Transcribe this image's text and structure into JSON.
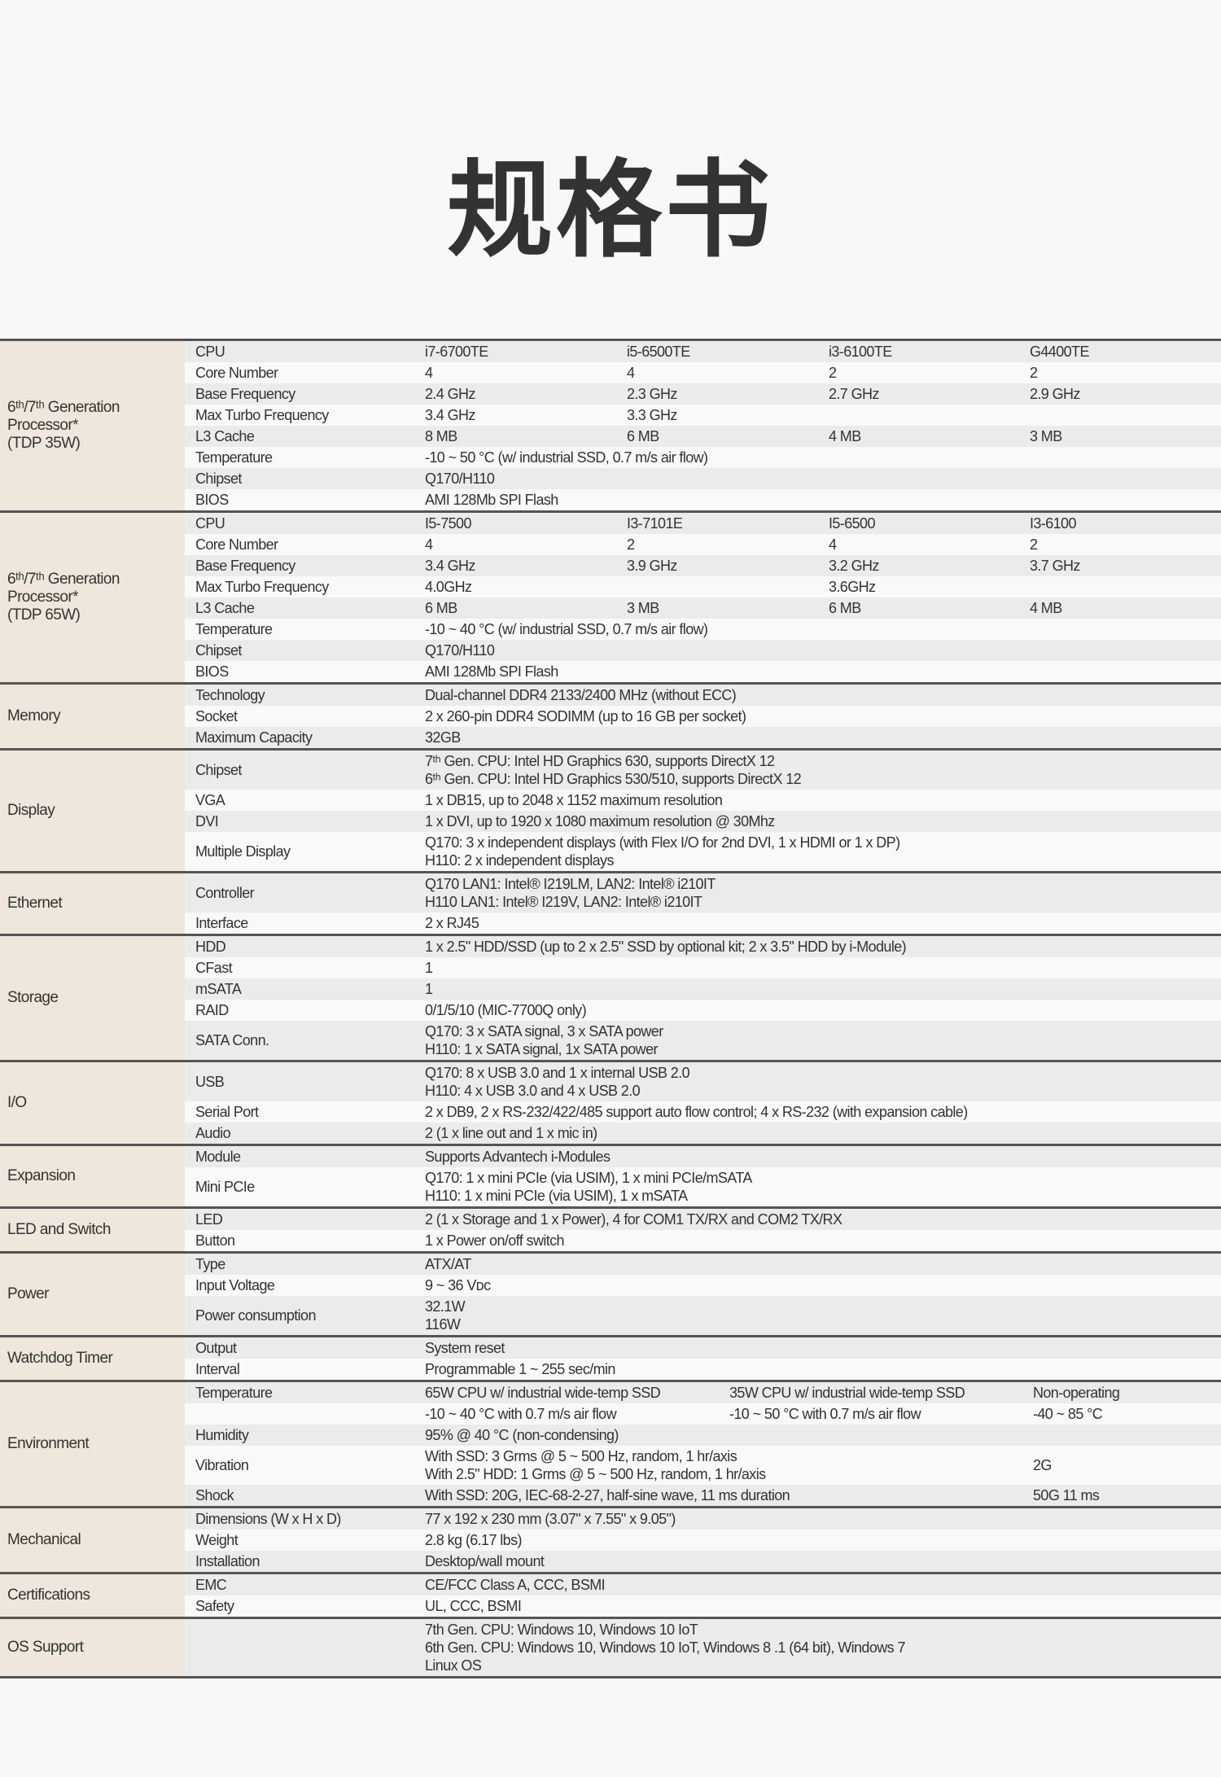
{
  "title": "规格书",
  "colors": {
    "label_bg": "#efe6dc",
    "row_shade": "#ebebeb",
    "divider": "#555555"
  },
  "groups": [
    {
      "label": "6ᵗʰ/7ᵗʰ Generation\nProcessor*\n(TDP 35W)",
      "rows": [
        {
          "param": "CPU",
          "values": [
            "i7-6700TE",
            "i5-6500TE",
            "i3-6100TE",
            "G4400TE"
          ]
        },
        {
          "param": "Core Number",
          "values": [
            "4",
            "4",
            "2",
            "2"
          ]
        },
        {
          "param": "Base Frequency",
          "values": [
            "2.4 GHz",
            "2.3 GHz",
            "2.7 GHz",
            "2.9 GHz"
          ]
        },
        {
          "param": "Max Turbo Frequency",
          "values": [
            "3.4 GHz",
            "3.3 GHz",
            "",
            ""
          ]
        },
        {
          "param": "L3 Cache",
          "values": [
            "8 MB",
            "6 MB",
            "4 MB",
            "3 MB"
          ]
        },
        {
          "param": "Temperature",
          "values": [
            "-10 ~ 50 °C (w/ industrial SSD, 0.7 m/s air flow)"
          ]
        },
        {
          "param": "Chipset",
          "values": [
            "Q170/H110"
          ]
        },
        {
          "param": "BIOS",
          "values": [
            "AMI 128Mb SPI Flash"
          ]
        }
      ]
    },
    {
      "label": "6ᵗʰ/7ᵗʰ Generation\nProcessor*\n(TDP 65W)",
      "rows": [
        {
          "param": "CPU",
          "values": [
            "I5-7500",
            "I3-7101E",
            "I5-6500",
            "I3-6100"
          ]
        },
        {
          "param": "Core Number",
          "values": [
            "4",
            "2",
            "4",
            "2"
          ]
        },
        {
          "param": "Base Frequency",
          "values": [
            "3.4 GHz",
            "3.9 GHz",
            "3.2 GHz",
            "3.7 GHz"
          ]
        },
        {
          "param": "Max Turbo Frequency",
          "values": [
            "4.0GHz",
            "",
            "3.6GHz",
            ""
          ]
        },
        {
          "param": "L3 Cache",
          "values": [
            "6 MB",
            "3 MB",
            "6 MB",
            "4 MB"
          ]
        },
        {
          "param": "Temperature",
          "values": [
            "-10 ~ 40 °C (w/ industrial SSD, 0.7 m/s air flow)"
          ]
        },
        {
          "param": "Chipset",
          "values": [
            "Q170/H110"
          ]
        },
        {
          "param": "BIOS",
          "values": [
            "AMI 128Mb SPI Flash"
          ]
        }
      ]
    },
    {
      "label": "Memory",
      "rows": [
        {
          "param": "Technology",
          "values": [
            "Dual-channel DDR4 2133/2400 MHz (without ECC)"
          ]
        },
        {
          "param": "Socket",
          "values": [
            "2 x 260-pin DDR4 SODIMM (up to 16 GB per socket)"
          ]
        },
        {
          "param": "Maximum Capacity",
          "values": [
            "32GB"
          ]
        }
      ]
    },
    {
      "label": "Display",
      "rows": [
        {
          "param": "Chipset",
          "values": [
            "7ᵗʰ Gen. CPU: Intel HD Graphics 630, supports DirectX 12\n6ᵗʰ Gen. CPU: Intel HD Graphics 530/510, supports DirectX 12"
          ]
        },
        {
          "param": "VGA",
          "values": [
            "1 x DB15, up to 2048 x 1152 maximum resolution"
          ]
        },
        {
          "param": "DVI",
          "values": [
            "1 x DVI, up to 1920 x 1080 maximum resolution @ 30Mhz"
          ]
        },
        {
          "param": "Multiple Display",
          "values": [
            "Q170: 3 x independent displays (with Flex I/O for 2nd DVI, 1 x HDMI or 1 x DP)\nH110: 2 x independent displays"
          ]
        }
      ]
    },
    {
      "label": "Ethernet",
      "rows": [
        {
          "param": "Controller",
          "values": [
            "Q170 LAN1: Intel® I219LM, LAN2: Intel® i210IT\nH110 LAN1: Intel® I219V, LAN2: Intel® i210IT"
          ]
        },
        {
          "param": "Interface",
          "values": [
            "2 x RJ45"
          ]
        }
      ]
    },
    {
      "label": "Storage",
      "rows": [
        {
          "param": "HDD",
          "values": [
            "1 x 2.5\" HDD/SSD (up to 2 x 2.5\" SSD by optional kit; 2 x 3.5\" HDD by i-Module)"
          ]
        },
        {
          "param": "CFast",
          "values": [
            "1"
          ]
        },
        {
          "param": "mSATA",
          "values": [
            "1"
          ]
        },
        {
          "param": "RAID",
          "values": [
            "0/1/5/10 (MIC-7700Q only)"
          ]
        },
        {
          "param": "SATA Conn.",
          "values": [
            "Q170: 3 x SATA signal, 3 x SATA power\nH110: 1 x SATA signal, 1x SATA power"
          ]
        }
      ]
    },
    {
      "label": "I/O",
      "rows": [
        {
          "param": "USB",
          "values": [
            "Q170: 8 x USB 3.0 and 1 x internal USB 2.0\nH110: 4 x USB 3.0 and 4 x USB 2.0"
          ]
        },
        {
          "param": "Serial Port",
          "values": [
            "2 x DB9, 2 x RS-232/422/485 support auto flow control; 4 x RS-232 (with expansion cable)"
          ]
        },
        {
          "param": "Audio",
          "values": [
            "2 (1 x line out and 1 x mic in)"
          ]
        }
      ]
    },
    {
      "label": "Expansion",
      "rows": [
        {
          "param": "Module",
          "values": [
            "Supports Advantech i-Modules"
          ]
        },
        {
          "param": "Mini PCIe",
          "values": [
            "Q170: 1 x mini PCIe (via USIM), 1 x mini PCIe/mSATA\nH110: 1 x mini PCIe (via USIM), 1 x mSATA"
          ]
        }
      ]
    },
    {
      "label": "LED and Switch",
      "rows": [
        {
          "param": "LED",
          "values": [
            "2 (1 x Storage and 1 x Power), 4 for COM1 TX/RX and COM2 TX/RX"
          ]
        },
        {
          "param": "Button",
          "values": [
            "1 x Power on/off switch"
          ]
        }
      ]
    },
    {
      "label": "Power",
      "rows": [
        {
          "param": "Type",
          "values": [
            "ATX/AT"
          ]
        },
        {
          "param": "Input Voltage",
          "values": [
            "9 ~ 36 Vᴅᴄ"
          ]
        },
        {
          "param": "Power consumption",
          "values": [
            "32.1W\n116W"
          ]
        }
      ]
    },
    {
      "label": "Watchdog Timer",
      "rows": [
        {
          "param": "Output",
          "values": [
            "System reset"
          ]
        },
        {
          "param": "Interval",
          "values": [
            "Programmable 1 ~ 255 sec/min"
          ]
        }
      ]
    },
    {
      "label": "Environment",
      "env": true,
      "rows": [
        {
          "param": "Temperature",
          "values": [
            "65W CPU w/ industrial wide-temp SSD",
            "35W CPU w/ industrial wide-temp SSD",
            "Non-operating"
          ]
        },
        {
          "param": "",
          "values": [
            "-10 ~ 40 °C with 0.7 m/s air flow",
            "-10 ~ 50 °C with 0.7 m/s air flow",
            "-40 ~ 85 °C"
          ]
        },
        {
          "param": "Humidity",
          "values": [
            "95% @ 40 °C (non-condensing)",
            "",
            ""
          ]
        },
        {
          "param": "Vibration",
          "values": [
            "With SSD: 3 Grms @ 5 ~ 500 Hz, random, 1 hr/axis\nWith 2.5\" HDD: 1 Grms @ 5 ~ 500 Hz, random, 1 hr/axis",
            "",
            "2G"
          ]
        },
        {
          "param": "Shock",
          "values": [
            "With SSD: 20G, IEC-68-2-27, half-sine wave, 11 ms duration",
            "",
            "50G 11 ms"
          ]
        }
      ]
    },
    {
      "label": "Mechanical",
      "rows": [
        {
          "param": "Dimensions (W x H x D)",
          "values": [
            "77 x 192 x 230 mm (3.07\" x 7.55\" x 9.05\")"
          ]
        },
        {
          "param": "Weight",
          "values": [
            "2.8 kg (6.17 lbs)"
          ]
        },
        {
          "param": "Installation",
          "values": [
            "Desktop/wall mount"
          ]
        }
      ]
    },
    {
      "label": "Certifications",
      "rows": [
        {
          "param": "EMC",
          "values": [
            "CE/FCC Class A, CCC, BSMI"
          ]
        },
        {
          "param": "Safety",
          "values": [
            "UL, CCC, BSMI"
          ]
        }
      ]
    },
    {
      "label": "OS Support",
      "rows": [
        {
          "param": "",
          "values": [
            "7th Gen. CPU: Windows 10, Windows 10 IoT\n6th Gen. CPU: Windows 10, Windows 10 IoT, Windows 8 .1 (64 bit), Windows 7\nLinux OS"
          ]
        }
      ]
    }
  ]
}
